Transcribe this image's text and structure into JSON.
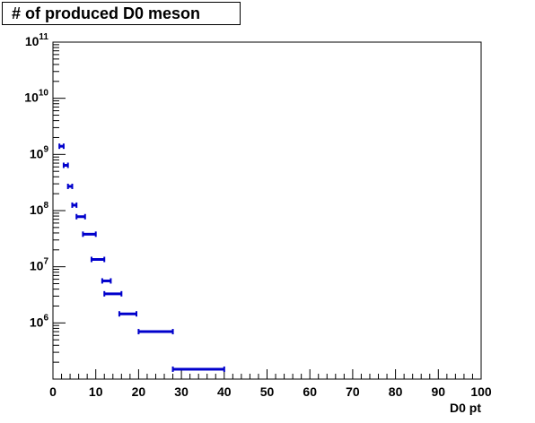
{
  "chart_data": {
    "type": "scatter",
    "title": "# of produced D0 meson",
    "xlabel": "D0 pt",
    "ylabel": "",
    "xlim": [
      0,
      100
    ],
    "ylim": [
      100000,
      100000000000
    ],
    "y_scale": "log",
    "grid": false,
    "x_tick_labels": [
      "0",
      "10",
      "20",
      "30",
      "40",
      "50",
      "60",
      "70",
      "80",
      "90",
      "100"
    ],
    "y_tick_labels": [
      {
        "base": "10",
        "exp": "6"
      },
      {
        "base": "10",
        "exp": "7"
      },
      {
        "base": "10",
        "exp": "8"
      },
      {
        "base": "10",
        "exp": "9"
      },
      {
        "base": "10",
        "exp": "10"
      },
      {
        "base": "10",
        "exp": "11"
      }
    ],
    "series": [
      {
        "color": "#0000cc",
        "points": [
          {
            "x": 2,
            "xlow": 1.5,
            "xhigh": 2.5,
            "y": 1400000000
          },
          {
            "x": 3,
            "xlow": 2.5,
            "xhigh": 3.5,
            "y": 640000000
          },
          {
            "x": 4,
            "xlow": 3.5,
            "xhigh": 4.5,
            "y": 270000000
          },
          {
            "x": 5,
            "xlow": 4.5,
            "xhigh": 5.5,
            "y": 125000000
          },
          {
            "x": 6.5,
            "xlow": 5.5,
            "xhigh": 7.5,
            "y": 78000000
          },
          {
            "x": 8.5,
            "xlow": 7,
            "xhigh": 10,
            "y": 38000000
          },
          {
            "x": 10.5,
            "xlow": 9,
            "xhigh": 12,
            "y": 13500000
          },
          {
            "x": 12.5,
            "xlow": 11.5,
            "xhigh": 13.5,
            "y": 5600000
          },
          {
            "x": 14,
            "xlow": 12,
            "xhigh": 16,
            "y": 3300000
          },
          {
            "x": 17.5,
            "xlow": 15.5,
            "xhigh": 19.5,
            "y": 1450000
          },
          {
            "x": 24,
            "xlow": 20,
            "xhigh": 28,
            "y": 700000
          },
          {
            "x": 34,
            "xlow": 28,
            "xhigh": 40,
            "y": 150000
          }
        ]
      }
    ]
  }
}
